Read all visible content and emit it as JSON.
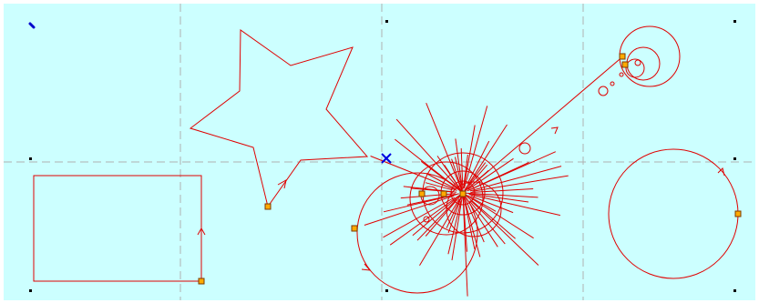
{
  "canvas": {
    "name": "cad-drawing-canvas",
    "background_color": "#ccffff",
    "border_color": "#ffffff",
    "grid_line_color": "#b0b0b0",
    "shape_color": "#e00000",
    "handle_fill": "#ffaa00",
    "handle_stroke": "#7a3b00",
    "origin_marker_color": "#0000e0",
    "corner_marker_color": "#000000"
  },
  "shapes": [
    {
      "name": "rectangle-shape",
      "kind": "rectangle"
    },
    {
      "name": "star-shape",
      "kind": "star"
    },
    {
      "name": "burst-shape",
      "kind": "starburst"
    },
    {
      "name": "spiral-circles-shape",
      "kind": "spiral-circles"
    },
    {
      "name": "circle-shape",
      "kind": "circle"
    }
  ],
  "icons": {
    "origin": "origin-cross-icon",
    "start_point": "start-point-handle-icon",
    "direction": "direction-arrow-icon",
    "corner": "corner-marker-icon",
    "cursor": "cursor-dot-icon"
  }
}
